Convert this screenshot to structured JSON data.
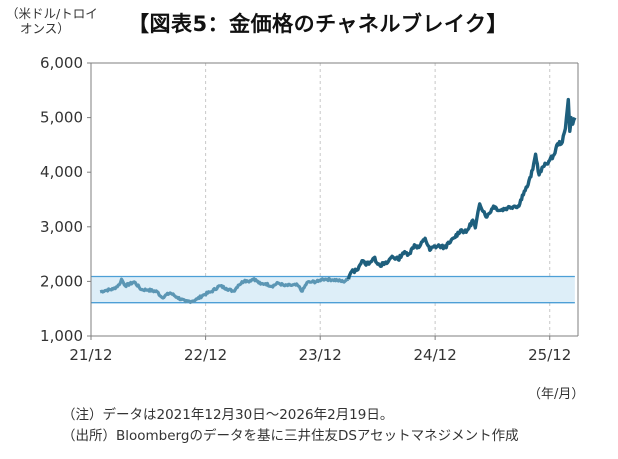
{
  "header": {
    "unit_label_line1": "（米ドル/トロイ",
    "unit_label_line2": "オンス）",
    "title": "【図表5：金価格のチャネルブレイク】"
  },
  "x_unit_label": "（年/月）",
  "notes": [
    "（注）データは2021年12月30日～2026年2月19日。",
    "（出所）Bloombergのデータを基に三井住友DSアセットマネジメント作成"
  ],
  "colors": {
    "line_pre": "#5b96b4",
    "line_post": "#1e5f7d",
    "channel_fill": "#ddeef8",
    "channel_line": "#4d9fd6",
    "axis": "#7f7f7f",
    "grid": "#c8c8c8"
  },
  "chart_data": {
    "type": "line",
    "y_ticks": [
      "1,000",
      "2,000",
      "3,000",
      "4,000",
      "5,000",
      "6,000"
    ],
    "x_ticks": [
      "21/12",
      "22/12",
      "23/12",
      "24/12",
      "25/12"
    ],
    "ylim": [
      1000,
      6000
    ],
    "x_range": [
      "2021-12-30",
      "2026-02-19"
    ],
    "grid": "vertical dashed",
    "channel": {
      "upper": 2090,
      "lower": 1610,
      "x_end": "2026-02-19"
    },
    "series": [
      {
        "style": "thin-light",
        "points": [
          [
            "2021-12-30",
            1810
          ],
          [
            "2022-01-20",
            1840
          ],
          [
            "2022-02-10",
            1860
          ],
          [
            "2022-03-01",
            1940
          ],
          [
            "2022-03-08",
            2040
          ],
          [
            "2022-03-20",
            1920
          ],
          [
            "2022-04-18",
            1990
          ],
          [
            "2022-05-10",
            1850
          ],
          [
            "2022-06-01",
            1845
          ],
          [
            "2022-06-30",
            1810
          ],
          [
            "2022-07-15",
            1705
          ],
          [
            "2022-08-10",
            1790
          ],
          [
            "2022-09-01",
            1710
          ],
          [
            "2022-09-28",
            1630
          ],
          [
            "2022-10-20",
            1640
          ],
          [
            "2022-11-05",
            1680
          ],
          [
            "2022-11-25",
            1755
          ],
          [
            "2022-12-20",
            1815
          ],
          [
            "2023-01-15",
            1920
          ],
          [
            "2023-02-05",
            1870
          ],
          [
            "2023-02-28",
            1820
          ],
          [
            "2023-03-15",
            1930
          ],
          [
            "2023-04-05",
            2020
          ],
          [
            "2023-04-15",
            2000
          ],
          [
            "2023-05-04",
            2050
          ],
          [
            "2023-05-25",
            1950
          ],
          [
            "2023-06-10",
            1960
          ],
          [
            "2023-06-30",
            1910
          ],
          [
            "2023-07-20",
            1970
          ],
          [
            "2023-08-10",
            1920
          ],
          [
            "2023-08-28",
            1930
          ],
          [
            "2023-09-20",
            1930
          ],
          [
            "2023-10-05",
            1820
          ],
          [
            "2023-10-20",
            1980
          ],
          [
            "2023-11-05",
            1990
          ],
          [
            "2023-11-25",
            2000
          ],
          [
            "2023-12-05",
            2040
          ],
          [
            "2023-12-20",
            2040
          ],
          [
            "2024-01-10",
            2030
          ],
          [
            "2024-01-25",
            2020
          ],
          [
            "2024-02-12",
            1995
          ],
          [
            "2024-02-29",
            2040
          ]
        ]
      },
      {
        "style": "thick-dark",
        "points": [
          [
            "2024-02-29",
            2040
          ],
          [
            "2024-03-05",
            2130
          ],
          [
            "2024-03-10",
            2180
          ],
          [
            "2024-03-25",
            2200
          ],
          [
            "2024-04-05",
            2300
          ],
          [
            "2024-04-12",
            2380
          ],
          [
            "2024-04-22",
            2320
          ],
          [
            "2024-05-10",
            2360
          ],
          [
            "2024-05-20",
            2430
          ],
          [
            "2024-06-07",
            2300
          ],
          [
            "2024-06-30",
            2330
          ],
          [
            "2024-07-17",
            2460
          ],
          [
            "2024-08-05",
            2400
          ],
          [
            "2024-08-20",
            2520
          ],
          [
            "2024-09-10",
            2510
          ],
          [
            "2024-09-26",
            2670
          ],
          [
            "2024-10-10",
            2620
          ],
          [
            "2024-10-30",
            2790
          ],
          [
            "2024-11-14",
            2570
          ],
          [
            "2024-11-25",
            2630
          ],
          [
            "2024-12-15",
            2650
          ],
          [
            "2024-12-30",
            2620
          ],
          [
            "2025-01-15",
            2700
          ],
          [
            "2025-01-31",
            2800
          ],
          [
            "2025-02-20",
            2940
          ],
          [
            "2025-03-10",
            2900
          ],
          [
            "2025-03-31",
            3120
          ],
          [
            "2025-04-08",
            2980
          ],
          [
            "2025-04-22",
            3420
          ],
          [
            "2025-05-15",
            3180
          ],
          [
            "2025-06-05",
            3380
          ],
          [
            "2025-06-25",
            3300
          ],
          [
            "2025-07-20",
            3350
          ],
          [
            "2025-08-10",
            3380
          ],
          [
            "2025-08-25",
            3380
          ],
          [
            "2025-09-05",
            3580
          ],
          [
            "2025-09-23",
            3770
          ],
          [
            "2025-10-08",
            4050
          ],
          [
            "2025-10-17",
            4330
          ],
          [
            "2025-10-28",
            3950
          ],
          [
            "2025-11-10",
            4100
          ],
          [
            "2025-11-28",
            4200
          ],
          [
            "2025-12-15",
            4320
          ],
          [
            "2025-12-26",
            4520
          ],
          [
            "2026-01-10",
            4550
          ],
          [
            "2026-01-20",
            4800
          ],
          [
            "2026-01-29",
            5330
          ],
          [
            "2026-02-03",
            4750
          ],
          [
            "2026-02-07",
            5000
          ],
          [
            "2026-02-12",
            4880
          ],
          [
            "2026-02-19",
            5000
          ]
        ]
      }
    ]
  }
}
